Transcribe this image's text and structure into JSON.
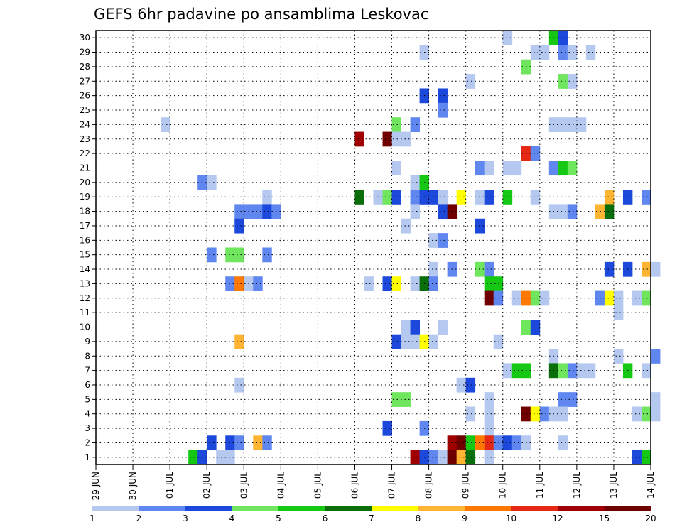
{
  "chart_data": {
    "type": "heatmap",
    "title": "GEFS 6hr padavine po ansamblima Leskovac",
    "xlabel": "",
    "ylabel": "",
    "x_ticks": [
      "29 JUN",
      "30 JUN",
      "01 JUL",
      "02 JUL",
      "03 JUL",
      "04 JUL",
      "05 JUL",
      "06 JUL",
      "07 JUL",
      "08 JUL",
      "09 JUL",
      "10 JUL",
      "11 JUL",
      "12 JUL",
      "13 JUL",
      "14 JUL"
    ],
    "y_ticks": [
      "1",
      "2",
      "3",
      "4",
      "5",
      "6",
      "7",
      "8",
      "9",
      "10",
      "11",
      "12",
      "13",
      "14",
      "15",
      "16",
      "17",
      "18",
      "19",
      "20",
      "21",
      "22",
      "23",
      "24",
      "25",
      "26",
      "27",
      "28",
      "29",
      "30"
    ],
    "members": 30,
    "steps_per_day": 4,
    "days": 15,
    "grid": true,
    "legend": {
      "position": "bottom",
      "thresholds": [
        "1",
        "2",
        "3",
        "4",
        "5",
        "6",
        "7",
        "8",
        "9",
        "10",
        "12",
        "15",
        "20"
      ],
      "colors": [
        "#b4c8f0",
        "#5f87ef",
        "#1c48dc",
        "#70e65e",
        "#14c814",
        "#0a6e0a",
        "#ffff00",
        "#ffb432",
        "#ff7800",
        "#e42814",
        "#a00000",
        "#700000"
      ]
    },
    "cells": [
      {
        "m": 30,
        "s": 44,
        "c": 0
      },
      {
        "m": 30,
        "s": 49,
        "c": 4
      },
      {
        "m": 30,
        "s": 50,
        "c": 2
      },
      {
        "m": 29,
        "s": 35,
        "c": 0
      },
      {
        "m": 29,
        "s": 47,
        "c": 0
      },
      {
        "m": 29,
        "s": 48,
        "c": 0
      },
      {
        "m": 29,
        "s": 50,
        "c": 1
      },
      {
        "m": 29,
        "s": 51,
        "c": 0
      },
      {
        "m": 29,
        "s": 53,
        "c": 0
      },
      {
        "m": 28,
        "s": 46,
        "c": 3
      },
      {
        "m": 27,
        "s": 40,
        "c": 0
      },
      {
        "m": 27,
        "s": 50,
        "c": 3
      },
      {
        "m": 27,
        "s": 51,
        "c": 0
      },
      {
        "m": 26,
        "s": 35,
        "c": 2
      },
      {
        "m": 26,
        "s": 37,
        "c": 2
      },
      {
        "m": 25,
        "s": 37,
        "c": 1
      },
      {
        "m": 24,
        "s": 7,
        "c": 0
      },
      {
        "m": 24,
        "s": 32,
        "c": 3
      },
      {
        "m": 24,
        "s": 34,
        "c": 1
      },
      {
        "m": 24,
        "s": 49,
        "c": 0
      },
      {
        "m": 24,
        "s": 50,
        "c": 0
      },
      {
        "m": 24,
        "s": 51,
        "c": 0
      },
      {
        "m": 24,
        "s": 52,
        "c": 0
      },
      {
        "m": 23,
        "s": 28,
        "c": 10
      },
      {
        "m": 23,
        "s": 31,
        "c": 11
      },
      {
        "m": 23,
        "s": 32,
        "c": 0
      },
      {
        "m": 23,
        "s": 33,
        "c": 0
      },
      {
        "m": 22,
        "s": 46,
        "c": 9
      },
      {
        "m": 22,
        "s": 47,
        "c": 1
      },
      {
        "m": 21,
        "s": 32,
        "c": 0
      },
      {
        "m": 21,
        "s": 41,
        "c": 1
      },
      {
        "m": 21,
        "s": 42,
        "c": 0
      },
      {
        "m": 21,
        "s": 44,
        "c": 0
      },
      {
        "m": 21,
        "s": 45,
        "c": 0
      },
      {
        "m": 21,
        "s": 49,
        "c": 1
      },
      {
        "m": 21,
        "s": 50,
        "c": 4
      },
      {
        "m": 21,
        "s": 51,
        "c": 3
      },
      {
        "m": 20,
        "s": 11,
        "c": 1
      },
      {
        "m": 20,
        "s": 12,
        "c": 0
      },
      {
        "m": 20,
        "s": 34,
        "c": 0
      },
      {
        "m": 20,
        "s": 35,
        "c": 4
      },
      {
        "m": 19,
        "s": 28,
        "c": 5
      },
      {
        "m": 19,
        "s": 30,
        "c": 0
      },
      {
        "m": 19,
        "s": 31,
        "c": 3
      },
      {
        "m": 19,
        "s": 32,
        "c": 2
      },
      {
        "m": 19,
        "s": 34,
        "c": 1
      },
      {
        "m": 19,
        "s": 35,
        "c": 2
      },
      {
        "m": 19,
        "s": 36,
        "c": 2
      },
      {
        "m": 19,
        "s": 37,
        "c": 0
      },
      {
        "m": 19,
        "s": 39,
        "c": 6
      },
      {
        "m": 19,
        "s": 41,
        "c": 0
      },
      {
        "m": 19,
        "s": 42,
        "c": 2
      },
      {
        "m": 19,
        "s": 44,
        "c": 4
      },
      {
        "m": 19,
        "s": 47,
        "c": 0
      },
      {
        "m": 19,
        "s": 55,
        "c": 7
      },
      {
        "m": 19,
        "s": 57,
        "c": 2
      },
      {
        "m": 19,
        "s": 59,
        "c": 1
      },
      {
        "m": 19,
        "s": 18,
        "c": 0
      },
      {
        "m": 18,
        "s": 15,
        "c": 1
      },
      {
        "m": 18,
        "s": 16,
        "c": 1
      },
      {
        "m": 18,
        "s": 17,
        "c": 1
      },
      {
        "m": 18,
        "s": 18,
        "c": 2
      },
      {
        "m": 18,
        "s": 19,
        "c": 1
      },
      {
        "m": 18,
        "s": 34,
        "c": 0
      },
      {
        "m": 18,
        "s": 37,
        "c": 2
      },
      {
        "m": 18,
        "s": 38,
        "c": 11
      },
      {
        "m": 18,
        "s": 49,
        "c": 0
      },
      {
        "m": 18,
        "s": 50,
        "c": 0
      },
      {
        "m": 18,
        "s": 51,
        "c": 1
      },
      {
        "m": 18,
        "s": 54,
        "c": 7
      },
      {
        "m": 18,
        "s": 55,
        "c": 5
      },
      {
        "m": 17,
        "s": 15,
        "c": 2
      },
      {
        "m": 17,
        "s": 33,
        "c": 0
      },
      {
        "m": 17,
        "s": 41,
        "c": 2
      },
      {
        "m": 16,
        "s": 36,
        "c": 0
      },
      {
        "m": 16,
        "s": 37,
        "c": 1
      },
      {
        "m": 15,
        "s": 12,
        "c": 1
      },
      {
        "m": 15,
        "s": 14,
        "c": 3
      },
      {
        "m": 15,
        "s": 15,
        "c": 3
      },
      {
        "m": 15,
        "s": 18,
        "c": 1
      },
      {
        "m": 14,
        "s": 36,
        "c": 0
      },
      {
        "m": 14,
        "s": 38,
        "c": 1
      },
      {
        "m": 14,
        "s": 41,
        "c": 3
      },
      {
        "m": 14,
        "s": 42,
        "c": 1
      },
      {
        "m": 14,
        "s": 55,
        "c": 2
      },
      {
        "m": 14,
        "s": 57,
        "c": 2
      },
      {
        "m": 14,
        "s": 59,
        "c": 7
      },
      {
        "m": 14,
        "s": 60,
        "c": 0
      },
      {
        "m": 13,
        "s": 14,
        "c": 1
      },
      {
        "m": 13,
        "s": 15,
        "c": 8
      },
      {
        "m": 13,
        "s": 16,
        "c": 0
      },
      {
        "m": 13,
        "s": 17,
        "c": 1
      },
      {
        "m": 13,
        "s": 29,
        "c": 0
      },
      {
        "m": 13,
        "s": 31,
        "c": 2
      },
      {
        "m": 13,
        "s": 32,
        "c": 6
      },
      {
        "m": 13,
        "s": 34,
        "c": 0
      },
      {
        "m": 13,
        "s": 35,
        "c": 5
      },
      {
        "m": 13,
        "s": 36,
        "c": 1
      },
      {
        "m": 13,
        "s": 42,
        "c": 4
      },
      {
        "m": 13,
        "s": 43,
        "c": 4
      },
      {
        "m": 12,
        "s": 42,
        "c": 11
      },
      {
        "m": 12,
        "s": 43,
        "c": 1
      },
      {
        "m": 12,
        "s": 45,
        "c": 0
      },
      {
        "m": 12,
        "s": 46,
        "c": 8
      },
      {
        "m": 12,
        "s": 47,
        "c": 3
      },
      {
        "m": 12,
        "s": 48,
        "c": 0
      },
      {
        "m": 12,
        "s": 54,
        "c": 1
      },
      {
        "m": 12,
        "s": 55,
        "c": 6
      },
      {
        "m": 12,
        "s": 56,
        "c": 0
      },
      {
        "m": 12,
        "s": 58,
        "c": 0
      },
      {
        "m": 12,
        "s": 59,
        "c": 3
      },
      {
        "m": 11,
        "s": 56,
        "c": 0
      },
      {
        "m": 10,
        "s": 33,
        "c": 0
      },
      {
        "m": 10,
        "s": 34,
        "c": 2
      },
      {
        "m": 10,
        "s": 37,
        "c": 0
      },
      {
        "m": 10,
        "s": 46,
        "c": 3
      },
      {
        "m": 10,
        "s": 47,
        "c": 2
      },
      {
        "m": 9,
        "s": 15,
        "c": 7
      },
      {
        "m": 9,
        "s": 32,
        "c": 2
      },
      {
        "m": 9,
        "s": 33,
        "c": 0
      },
      {
        "m": 9,
        "s": 34,
        "c": 0
      },
      {
        "m": 9,
        "s": 35,
        "c": 6
      },
      {
        "m": 9,
        "s": 36,
        "c": 0
      },
      {
        "m": 9,
        "s": 43,
        "c": 0
      },
      {
        "m": 8,
        "s": 49,
        "c": 0
      },
      {
        "m": 8,
        "s": 56,
        "c": 0
      },
      {
        "m": 8,
        "s": 60,
        "c": 1
      },
      {
        "m": 7,
        "s": 44,
        "c": 0
      },
      {
        "m": 7,
        "s": 45,
        "c": 4
      },
      {
        "m": 7,
        "s": 46,
        "c": 4
      },
      {
        "m": 7,
        "s": 49,
        "c": 5
      },
      {
        "m": 7,
        "s": 50,
        "c": 3
      },
      {
        "m": 7,
        "s": 51,
        "c": 1
      },
      {
        "m": 7,
        "s": 52,
        "c": 0
      },
      {
        "m": 7,
        "s": 53,
        "c": 0
      },
      {
        "m": 7,
        "s": 57,
        "c": 4
      },
      {
        "m": 7,
        "s": 59,
        "c": 0
      },
      {
        "m": 6,
        "s": 15,
        "c": 0
      },
      {
        "m": 6,
        "s": 39,
        "c": 0
      },
      {
        "m": 6,
        "s": 40,
        "c": 2
      },
      {
        "m": 5,
        "s": 32,
        "c": 3
      },
      {
        "m": 5,
        "s": 33,
        "c": 3
      },
      {
        "m": 5,
        "s": 42,
        "c": 0
      },
      {
        "m": 5,
        "s": 50,
        "c": 1
      },
      {
        "m": 5,
        "s": 51,
        "c": 1
      },
      {
        "m": 5,
        "s": 60,
        "c": 0
      },
      {
        "m": 4,
        "s": 40,
        "c": 0
      },
      {
        "m": 4,
        "s": 42,
        "c": 0
      },
      {
        "m": 4,
        "s": 46,
        "c": 11
      },
      {
        "m": 4,
        "s": 47,
        "c": 6
      },
      {
        "m": 4,
        "s": 48,
        "c": 1
      },
      {
        "m": 4,
        "s": 49,
        "c": 0
      },
      {
        "m": 4,
        "s": 50,
        "c": 0
      },
      {
        "m": 4,
        "s": 58,
        "c": 0
      },
      {
        "m": 4,
        "s": 59,
        "c": 3
      },
      {
        "m": 4,
        "s": 60,
        "c": 0
      },
      {
        "m": 3,
        "s": 31,
        "c": 2
      },
      {
        "m": 3,
        "s": 35,
        "c": 1
      },
      {
        "m": 3,
        "s": 42,
        "c": 0
      },
      {
        "m": 2,
        "s": 12,
        "c": 2
      },
      {
        "m": 2,
        "s": 14,
        "c": 2
      },
      {
        "m": 2,
        "s": 15,
        "c": 1
      },
      {
        "m": 2,
        "s": 17,
        "c": 7
      },
      {
        "m": 2,
        "s": 18,
        "c": 1
      },
      {
        "m": 2,
        "s": 38,
        "c": 10
      },
      {
        "m": 2,
        "s": 39,
        "c": 11
      },
      {
        "m": 2,
        "s": 40,
        "c": 4
      },
      {
        "m": 2,
        "s": 41,
        "c": 8
      },
      {
        "m": 2,
        "s": 42,
        "c": 9
      },
      {
        "m": 2,
        "s": 43,
        "c": 1
      },
      {
        "m": 2,
        "s": 44,
        "c": 2
      },
      {
        "m": 2,
        "s": 45,
        "c": 1
      },
      {
        "m": 2,
        "s": 46,
        "c": 0
      },
      {
        "m": 2,
        "s": 50,
        "c": 0
      },
      {
        "m": 1,
        "s": 10,
        "c": 4
      },
      {
        "m": 1,
        "s": 11,
        "c": 2
      },
      {
        "m": 1,
        "s": 13,
        "c": 0
      },
      {
        "m": 1,
        "s": 14,
        "c": 0
      },
      {
        "m": 1,
        "s": 34,
        "c": 10
      },
      {
        "m": 1,
        "s": 35,
        "c": 2
      },
      {
        "m": 1,
        "s": 36,
        "c": 1
      },
      {
        "m": 1,
        "s": 37,
        "c": 0
      },
      {
        "m": 1,
        "s": 38,
        "c": 11
      },
      {
        "m": 1,
        "s": 39,
        "c": 7
      },
      {
        "m": 1,
        "s": 40,
        "c": 5
      },
      {
        "m": 1,
        "s": 42,
        "c": 0
      },
      {
        "m": 1,
        "s": 58,
        "c": 2
      },
      {
        "m": 1,
        "s": 59,
        "c": 4
      }
    ]
  }
}
